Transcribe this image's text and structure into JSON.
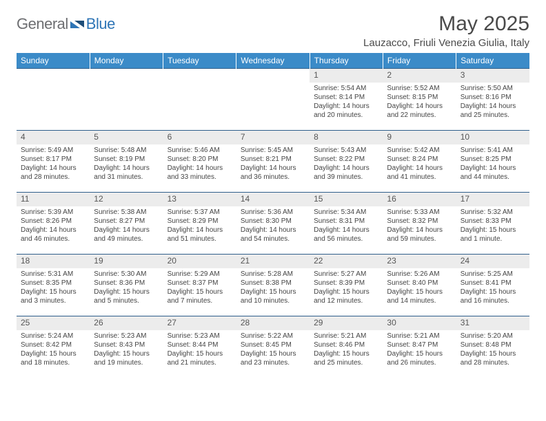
{
  "logo": {
    "text1": "General",
    "text2": "Blue"
  },
  "title": "May 2025",
  "location": "Lauzacco, Friuli Venezia Giulia, Italy",
  "colors": {
    "header_bg": "#3b8bc8",
    "header_text": "#ffffff",
    "daynum_bg": "#ececec",
    "row_border": "#2e5e8a",
    "logo_gray": "#6d6e71",
    "logo_blue": "#2e75b6",
    "text": "#444444"
  },
  "day_headers": [
    "Sunday",
    "Monday",
    "Tuesday",
    "Wednesday",
    "Thursday",
    "Friday",
    "Saturday"
  ],
  "weeks": [
    [
      {
        "n": "",
        "sr": "",
        "ss": "",
        "dl": "",
        "empty": true
      },
      {
        "n": "",
        "sr": "",
        "ss": "",
        "dl": "",
        "empty": true
      },
      {
        "n": "",
        "sr": "",
        "ss": "",
        "dl": "",
        "empty": true
      },
      {
        "n": "",
        "sr": "",
        "ss": "",
        "dl": "",
        "empty": true
      },
      {
        "n": "1",
        "sr": "Sunrise: 5:54 AM",
        "ss": "Sunset: 8:14 PM",
        "dl": "Daylight: 14 hours and 20 minutes."
      },
      {
        "n": "2",
        "sr": "Sunrise: 5:52 AM",
        "ss": "Sunset: 8:15 PM",
        "dl": "Daylight: 14 hours and 22 minutes."
      },
      {
        "n": "3",
        "sr": "Sunrise: 5:50 AM",
        "ss": "Sunset: 8:16 PM",
        "dl": "Daylight: 14 hours and 25 minutes."
      }
    ],
    [
      {
        "n": "4",
        "sr": "Sunrise: 5:49 AM",
        "ss": "Sunset: 8:17 PM",
        "dl": "Daylight: 14 hours and 28 minutes."
      },
      {
        "n": "5",
        "sr": "Sunrise: 5:48 AM",
        "ss": "Sunset: 8:19 PM",
        "dl": "Daylight: 14 hours and 31 minutes."
      },
      {
        "n": "6",
        "sr": "Sunrise: 5:46 AM",
        "ss": "Sunset: 8:20 PM",
        "dl": "Daylight: 14 hours and 33 minutes."
      },
      {
        "n": "7",
        "sr": "Sunrise: 5:45 AM",
        "ss": "Sunset: 8:21 PM",
        "dl": "Daylight: 14 hours and 36 minutes."
      },
      {
        "n": "8",
        "sr": "Sunrise: 5:43 AM",
        "ss": "Sunset: 8:22 PM",
        "dl": "Daylight: 14 hours and 39 minutes."
      },
      {
        "n": "9",
        "sr": "Sunrise: 5:42 AM",
        "ss": "Sunset: 8:24 PM",
        "dl": "Daylight: 14 hours and 41 minutes."
      },
      {
        "n": "10",
        "sr": "Sunrise: 5:41 AM",
        "ss": "Sunset: 8:25 PM",
        "dl": "Daylight: 14 hours and 44 minutes."
      }
    ],
    [
      {
        "n": "11",
        "sr": "Sunrise: 5:39 AM",
        "ss": "Sunset: 8:26 PM",
        "dl": "Daylight: 14 hours and 46 minutes."
      },
      {
        "n": "12",
        "sr": "Sunrise: 5:38 AM",
        "ss": "Sunset: 8:27 PM",
        "dl": "Daylight: 14 hours and 49 minutes."
      },
      {
        "n": "13",
        "sr": "Sunrise: 5:37 AM",
        "ss": "Sunset: 8:29 PM",
        "dl": "Daylight: 14 hours and 51 minutes."
      },
      {
        "n": "14",
        "sr": "Sunrise: 5:36 AM",
        "ss": "Sunset: 8:30 PM",
        "dl": "Daylight: 14 hours and 54 minutes."
      },
      {
        "n": "15",
        "sr": "Sunrise: 5:34 AM",
        "ss": "Sunset: 8:31 PM",
        "dl": "Daylight: 14 hours and 56 minutes."
      },
      {
        "n": "16",
        "sr": "Sunrise: 5:33 AM",
        "ss": "Sunset: 8:32 PM",
        "dl": "Daylight: 14 hours and 59 minutes."
      },
      {
        "n": "17",
        "sr": "Sunrise: 5:32 AM",
        "ss": "Sunset: 8:33 PM",
        "dl": "Daylight: 15 hours and 1 minute."
      }
    ],
    [
      {
        "n": "18",
        "sr": "Sunrise: 5:31 AM",
        "ss": "Sunset: 8:35 PM",
        "dl": "Daylight: 15 hours and 3 minutes."
      },
      {
        "n": "19",
        "sr": "Sunrise: 5:30 AM",
        "ss": "Sunset: 8:36 PM",
        "dl": "Daylight: 15 hours and 5 minutes."
      },
      {
        "n": "20",
        "sr": "Sunrise: 5:29 AM",
        "ss": "Sunset: 8:37 PM",
        "dl": "Daylight: 15 hours and 7 minutes."
      },
      {
        "n": "21",
        "sr": "Sunrise: 5:28 AM",
        "ss": "Sunset: 8:38 PM",
        "dl": "Daylight: 15 hours and 10 minutes."
      },
      {
        "n": "22",
        "sr": "Sunrise: 5:27 AM",
        "ss": "Sunset: 8:39 PM",
        "dl": "Daylight: 15 hours and 12 minutes."
      },
      {
        "n": "23",
        "sr": "Sunrise: 5:26 AM",
        "ss": "Sunset: 8:40 PM",
        "dl": "Daylight: 15 hours and 14 minutes."
      },
      {
        "n": "24",
        "sr": "Sunrise: 5:25 AM",
        "ss": "Sunset: 8:41 PM",
        "dl": "Daylight: 15 hours and 16 minutes."
      }
    ],
    [
      {
        "n": "25",
        "sr": "Sunrise: 5:24 AM",
        "ss": "Sunset: 8:42 PM",
        "dl": "Daylight: 15 hours and 18 minutes."
      },
      {
        "n": "26",
        "sr": "Sunrise: 5:23 AM",
        "ss": "Sunset: 8:43 PM",
        "dl": "Daylight: 15 hours and 19 minutes."
      },
      {
        "n": "27",
        "sr": "Sunrise: 5:23 AM",
        "ss": "Sunset: 8:44 PM",
        "dl": "Daylight: 15 hours and 21 minutes."
      },
      {
        "n": "28",
        "sr": "Sunrise: 5:22 AM",
        "ss": "Sunset: 8:45 PM",
        "dl": "Daylight: 15 hours and 23 minutes."
      },
      {
        "n": "29",
        "sr": "Sunrise: 5:21 AM",
        "ss": "Sunset: 8:46 PM",
        "dl": "Daylight: 15 hours and 25 minutes."
      },
      {
        "n": "30",
        "sr": "Sunrise: 5:21 AM",
        "ss": "Sunset: 8:47 PM",
        "dl": "Daylight: 15 hours and 26 minutes."
      },
      {
        "n": "31",
        "sr": "Sunrise: 5:20 AM",
        "ss": "Sunset: 8:48 PM",
        "dl": "Daylight: 15 hours and 28 minutes."
      }
    ]
  ]
}
